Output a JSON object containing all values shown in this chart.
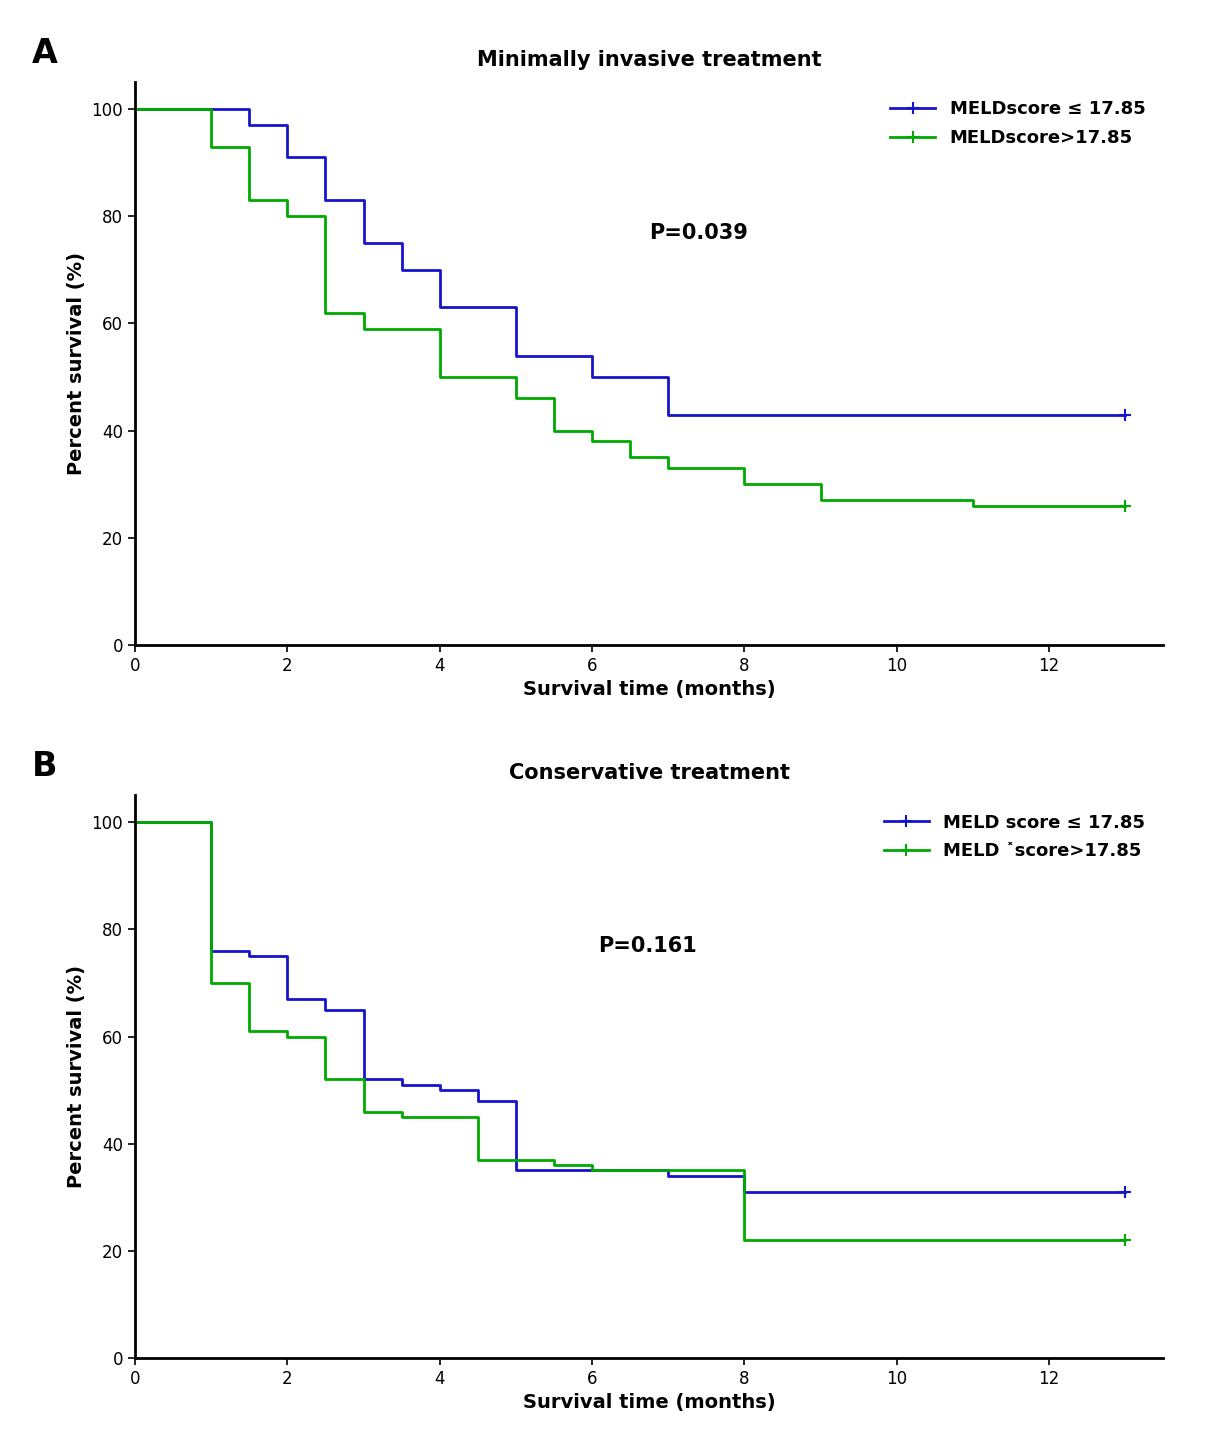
{
  "panel_A": {
    "title": "Minimally invasive treatment",
    "pvalue": "P=0.039",
    "blue_times": [
      0,
      1.5,
      2.0,
      2.5,
      3.0,
      3.5,
      4.0,
      5.0,
      6.0,
      7.0,
      8.0,
      11.0,
      13.0
    ],
    "blue_surv": [
      100,
      97,
      91,
      83,
      75,
      70,
      63,
      54,
      50,
      43,
      43,
      43,
      43
    ],
    "green_times": [
      0,
      1.0,
      1.5,
      2.0,
      2.5,
      3.0,
      4.0,
      5.0,
      5.5,
      6.0,
      6.5,
      7.0,
      8.0,
      9.0,
      11.0,
      13.0
    ],
    "green_surv": [
      100,
      93,
      83,
      80,
      62,
      59,
      50,
      46,
      40,
      38,
      35,
      33,
      30,
      27,
      26,
      26
    ],
    "legend_label_blue": "MELDscore ≤ 17.85",
    "legend_label_green": "MELDscore>17.85",
    "pvalue_x": 0.5,
    "pvalue_y": 0.75,
    "xlabel": "Survival time (months)",
    "ylabel": "Percent survival (%)",
    "xlim": [
      0,
      13.5
    ],
    "ylim": [
      0,
      105
    ],
    "xticks": [
      0,
      2,
      4,
      6,
      8,
      10,
      12
    ],
    "yticks": [
      0,
      20,
      40,
      60,
      80,
      100
    ]
  },
  "panel_B": {
    "title": "Conservative treatment",
    "pvalue": "P=0.161",
    "blue_times": [
      0,
      1.0,
      1.5,
      2.0,
      2.5,
      3.0,
      3.5,
      4.0,
      4.5,
      5.0,
      6.0,
      7.0,
      8.0,
      11.0,
      13.0
    ],
    "blue_surv": [
      100,
      76,
      75,
      67,
      65,
      52,
      51,
      50,
      48,
      35,
      35,
      34,
      31,
      31,
      31
    ],
    "green_times": [
      0,
      1.0,
      1.5,
      2.0,
      2.5,
      3.0,
      3.5,
      4.5,
      5.5,
      6.0,
      8.0,
      11.0,
      13.0
    ],
    "green_surv": [
      100,
      70,
      61,
      60,
      52,
      46,
      45,
      37,
      36,
      35,
      22,
      22,
      22
    ],
    "legend_label_blue": "MELD score ≤ 17.85",
    "legend_label_green": "MELD ˟score>17.85",
    "pvalue_x": 0.45,
    "pvalue_y": 0.75,
    "xlabel": "Survival time (months)",
    "ylabel": "Percent survival (%)",
    "xlim": [
      0,
      13.5
    ],
    "ylim": [
      0,
      105
    ],
    "xticks": [
      0,
      2,
      4,
      6,
      8,
      10,
      12
    ],
    "yticks": [
      0,
      20,
      40,
      60,
      80,
      100
    ]
  },
  "blue_color": "#1414CC",
  "green_color": "#00AA00",
  "line_width": 2.0,
  "bg_color": "#ffffff",
  "title_fontsize": 15,
  "label_fontsize": 14,
  "tick_fontsize": 12,
  "legend_fontsize": 13,
  "pvalue_fontsize": 15,
  "panel_label_fontsize": 24
}
